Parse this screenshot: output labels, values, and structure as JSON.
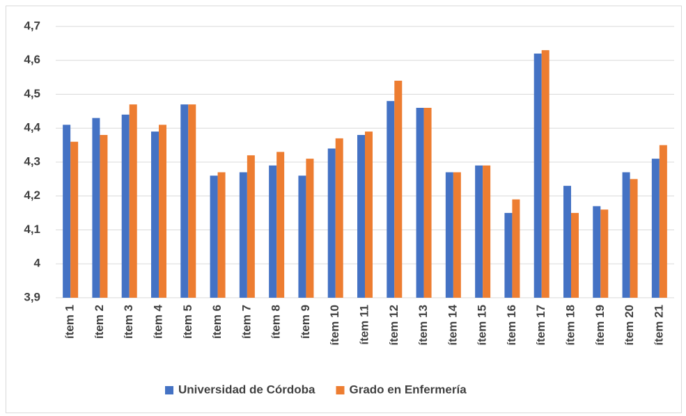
{
  "chart_data": {
    "type": "bar",
    "categories": [
      "ítem 1",
      "ítem 2",
      "ítem 3",
      "ítem 4",
      "ítem 5",
      "ítem 6",
      "ítem 7",
      "ítem 8",
      "ítem 9",
      "ítem 10",
      "ítem 11",
      "ítem 12",
      "ítem 13",
      "ítem 14",
      "ítem 15",
      "ítem 16",
      "ítem 17",
      "ítem 18",
      "ítem 19",
      "ítem 20",
      "ítem 21"
    ],
    "series": [
      {
        "name": "Universidad de Córdoba",
        "color": "#4472c4",
        "values": [
          4.41,
          4.43,
          4.44,
          4.39,
          4.47,
          4.26,
          4.27,
          4.29,
          4.26,
          4.34,
          4.38,
          4.48,
          4.46,
          4.27,
          4.29,
          4.15,
          4.62,
          4.23,
          4.17,
          4.27,
          4.31
        ]
      },
      {
        "name": "Grado en Enfermería",
        "color": "#ed7d31",
        "values": [
          4.36,
          4.38,
          4.47,
          4.41,
          4.47,
          4.27,
          4.32,
          4.33,
          4.31,
          4.37,
          4.39,
          4.54,
          4.46,
          4.27,
          4.29,
          4.19,
          4.63,
          4.15,
          4.16,
          4.25,
          4.35
        ]
      }
    ],
    "ylim": [
      3.9,
      4.7
    ],
    "yticks": [
      {
        "value": 3.9,
        "label": "3,9"
      },
      4,
      {
        "value": 4.1,
        "label": "4,1"
      },
      {
        "value": 4.2,
        "label": "4,2"
      },
      {
        "value": 4.3,
        "label": "4,3"
      },
      {
        "value": 4.4,
        "label": "4,4"
      },
      {
        "value": 4.5,
        "label": "4,5"
      },
      {
        "value": 4.6,
        "label": "4,6"
      },
      {
        "value": 4.7,
        "label": "4,7"
      }
    ],
    "grid": true,
    "legend": "bottom"
  }
}
